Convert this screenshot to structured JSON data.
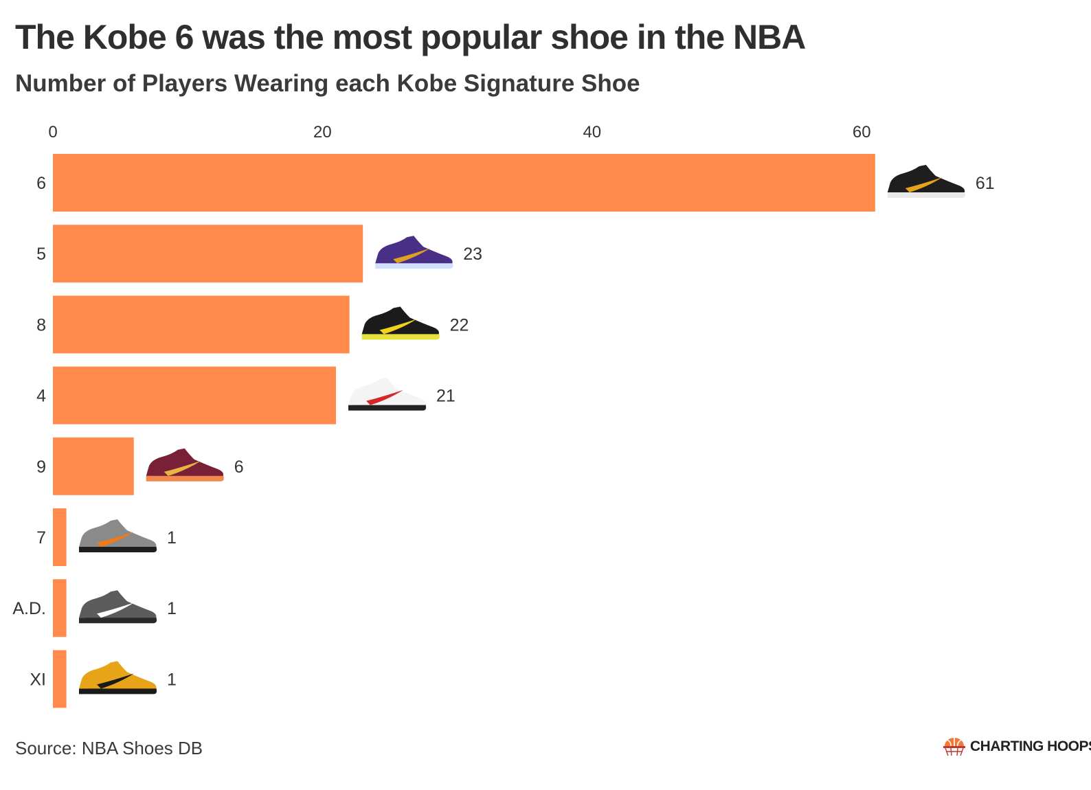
{
  "header": {
    "title": "The Kobe 6 was the most popular shoe in the NBA",
    "subtitle": "Number of Players Wearing each Kobe Signature Shoe"
  },
  "footer": {
    "source": "Source: NBA Shoes DB",
    "brand": "CHARTING HOOPS"
  },
  "colors": {
    "bar": "#ff8a4c",
    "text": "#333333",
    "brand_ball": "#f07a3a"
  },
  "chart_data": {
    "type": "bar",
    "orientation": "horizontal",
    "categories": [
      "6",
      "5",
      "8",
      "4",
      "9",
      "7",
      "A.D.",
      "XI"
    ],
    "values": [
      61,
      23,
      22,
      21,
      6,
      1,
      1,
      1
    ],
    "value_labels": [
      "61",
      "23",
      "22",
      "21",
      "6",
      "1",
      "1",
      "1"
    ],
    "xticks": [
      0,
      20,
      40,
      60
    ],
    "xtick_labels": [
      "0",
      "20",
      "40",
      "60"
    ],
    "xlim": [
      0,
      65
    ],
    "x_axis_position": "top",
    "grid": false,
    "legend": "none",
    "shoe_icons": [
      {
        "upper": "#1e1e1e",
        "accent": "#e8a418",
        "sole": "#e8e8e8"
      },
      {
        "upper": "#4a2f86",
        "accent": "#e0a020",
        "sole": "#cfe0ff"
      },
      {
        "upper": "#1b1b1b",
        "accent": "#f2d21a",
        "sole": "#e6e03a"
      },
      {
        "upper": "#f4f4f4",
        "accent": "#d62828",
        "sole": "#222222"
      },
      {
        "upper": "#7a1f38",
        "accent": "#e8b640",
        "sole": "#f08850"
      },
      {
        "upper": "#8a8a8a",
        "accent": "#f07a1a",
        "sole": "#1e1e1e"
      },
      {
        "upper": "#5c5c5c",
        "accent": "#ffffff",
        "sole": "#2a2a2a"
      },
      {
        "upper": "#e8a418",
        "accent": "#1a1a1a",
        "sole": "#1a1a1a"
      }
    ]
  }
}
